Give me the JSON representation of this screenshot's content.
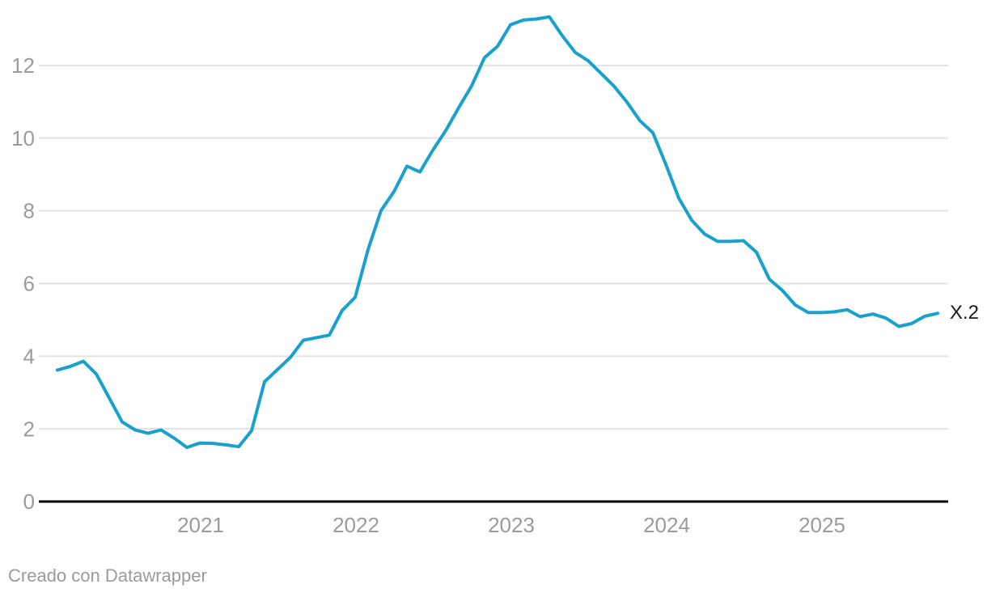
{
  "chart_data": {
    "type": "line",
    "title": "",
    "frequency": "monthly",
    "x_start": "2020-01",
    "x_end": "2025-09",
    "values": [
      3.62,
      3.72,
      3.86,
      3.51,
      2.85,
      2.19,
      1.97,
      1.88,
      1.97,
      1.75,
      1.49,
      1.61,
      1.6,
      1.56,
      1.51,
      1.95,
      3.3,
      3.63,
      3.97,
      4.44,
      4.51,
      4.58,
      5.26,
      5.62,
      6.94,
      8.01,
      8.53,
      9.23,
      9.07,
      9.67,
      10.21,
      10.84,
      11.44,
      12.22,
      12.53,
      13.12,
      13.25,
      13.28,
      13.34,
      12.82,
      12.36,
      12.13,
      11.78,
      11.43,
      10.99,
      10.48,
      10.15,
      9.28,
      8.35,
      7.74,
      7.36,
      7.16,
      7.16,
      7.18,
      6.86,
      6.12,
      5.81,
      5.41,
      5.2,
      5.2,
      5.22,
      5.28,
      5.09,
      5.16,
      5.05,
      4.82,
      4.9,
      5.1,
      5.18
    ],
    "x_tick_labels": [
      "2021",
      "2022",
      "2023",
      "2024",
      "2025"
    ],
    "x_tick_years": [
      2021,
      2022,
      2023,
      2024,
      2025
    ],
    "y_ticks": [
      0,
      2,
      4,
      6,
      8,
      10,
      12
    ],
    "y_tick_labels": [
      "0",
      "2",
      "4",
      "6",
      "8",
      "10",
      "12"
    ],
    "ylim": [
      0,
      13.5
    ],
    "grid": "horizontal-only",
    "legend": "none",
    "end_label": "X.2",
    "line_color": "#18a1cd"
  },
  "colors": {
    "background": "#ffffff",
    "line": "#18a1cd",
    "gridline": "#e3e3e3",
    "baseline": "#000000",
    "tick_text": "#9b9b9b",
    "end_label_text": "#1a1a1a"
  },
  "footer": {
    "credit": "Creado con Datawrapper"
  }
}
